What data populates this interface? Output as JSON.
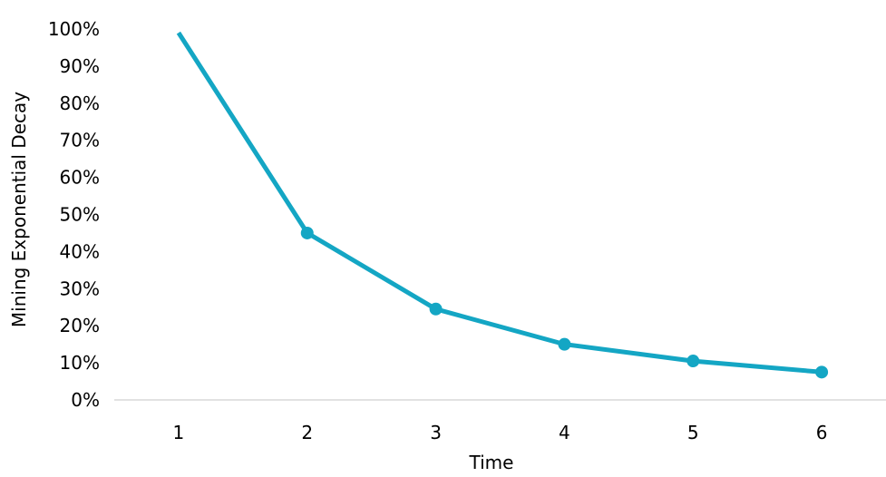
{
  "chart_data": {
    "type": "line",
    "title": "",
    "xlabel": "Time",
    "ylabel": "Mining Exponential Decay",
    "categories": [
      "1",
      "2",
      "3",
      "4",
      "5",
      "6"
    ],
    "series": [
      {
        "values": [
          0.99,
          0.45,
          0.245,
          0.15,
          0.105,
          0.075
        ]
      }
    ],
    "ylim": [
      0,
      1
    ],
    "yticks": [
      "0%",
      "10%",
      "20%",
      "30%",
      "40%",
      "50%",
      "60%",
      "70%",
      "80%",
      "90%",
      "100%"
    ],
    "grid": false,
    "legend": "none",
    "colors": {
      "line": "#14A6C4",
      "axis": "#d9d9d9"
    }
  }
}
